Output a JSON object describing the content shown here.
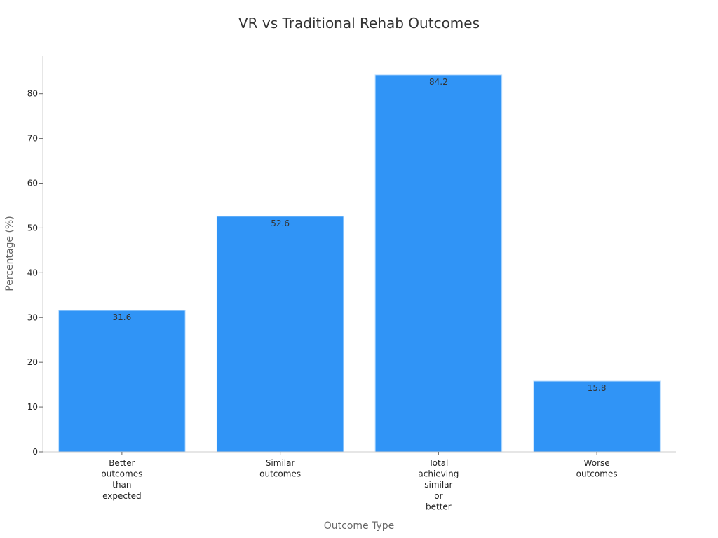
{
  "chart_data": {
    "type": "bar",
    "title": "VR vs Traditional Rehab Outcomes",
    "xlabel": "Outcome Type",
    "ylabel": "Percentage (%)",
    "categories": [
      [
        "Better",
        "outcomes",
        "than",
        "expected"
      ],
      [
        "Similar",
        "outcomes"
      ],
      [
        "Total",
        "achieving",
        "similar",
        "or",
        "better"
      ],
      [
        "Worse",
        "outcomes"
      ]
    ],
    "values": [
      31.6,
      52.6,
      84.2,
      15.8
    ],
    "data_labels": [
      "31.6",
      "52.6",
      "84.2",
      "15.8"
    ],
    "ylim": [
      0,
      88.4
    ],
    "yticks": [
      0,
      10,
      20,
      30,
      40,
      50,
      60,
      70,
      80
    ],
    "grid": false,
    "bar_color": "#3094f6",
    "bar_edge_color": "#bfe0ff"
  }
}
